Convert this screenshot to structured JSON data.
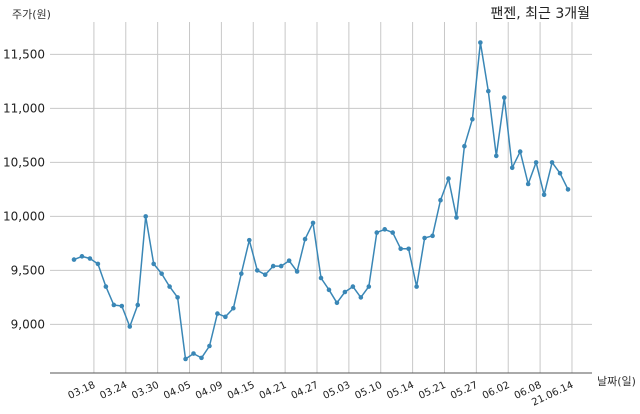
{
  "chart_data": {
    "type": "line",
    "title": "팬젠, 최근 3개월",
    "ylabel": "주가(원)",
    "xlabel": "날짜(일)",
    "ylim": [
      8550,
      11800
    ],
    "yticks": [
      9000,
      9500,
      10000,
      10500,
      11000,
      11500
    ],
    "ytick_labels": [
      "9,000",
      "9,500",
      "10,000",
      "10,500",
      "11,000",
      "11,500"
    ],
    "grid": true,
    "line_color": "#3a87b6",
    "x_start_date": "2021-03-15",
    "xtick_labels": [
      "03.18",
      "03.24",
      "03.30",
      "04.05",
      "04.09",
      "04.15",
      "04.21",
      "04.27",
      "05.03",
      "05.10",
      "05.14",
      "05.21",
      "05.27",
      "06.02",
      "06.08",
      "21.06.14"
    ],
    "xtick_positions": [
      3,
      7,
      11,
      15,
      19,
      23,
      27,
      31,
      35,
      39,
      43,
      47,
      51,
      55,
      59,
      63
    ],
    "values": [
      9600,
      9630,
      9610,
      9560,
      9350,
      9180,
      9170,
      8980,
      9180,
      10000,
      9560,
      9470,
      9350,
      9250,
      8680,
      8730,
      8690,
      8800,
      9100,
      9070,
      9150,
      9470,
      9780,
      9500,
      9460,
      9540,
      9540,
      9590,
      9490,
      9790,
      9940,
      9430,
      9320,
      9200,
      9300,
      9350,
      9250,
      9350,
      9850,
      9880,
      9850,
      9700,
      9700,
      9350,
      9800,
      9820,
      10150,
      10350,
      9990,
      10650,
      10900,
      11610,
      11160,
      10560,
      11100,
      10450,
      10600,
      10300,
      10500,
      10200,
      10500,
      10400,
      10250
    ]
  }
}
